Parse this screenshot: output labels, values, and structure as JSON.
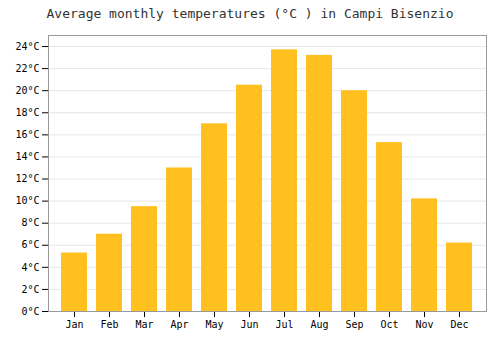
{
  "chart_data": {
    "type": "bar",
    "title": "Average monthly temperatures (°C ) in Campi Bisenzio",
    "categories": [
      "Jan",
      "Feb",
      "Mar",
      "Apr",
      "May",
      "Jun",
      "Jul",
      "Aug",
      "Sep",
      "Oct",
      "Nov",
      "Dec"
    ],
    "values": [
      5.3,
      7.0,
      9.5,
      13.0,
      17.0,
      20.5,
      23.7,
      23.2,
      20.0,
      15.3,
      10.2,
      6.2
    ],
    "color": "#FFC020",
    "ylim": [
      0,
      25
    ],
    "yticks": [
      {
        "value": 0,
        "label": "0°C"
      },
      {
        "value": 2,
        "label": "2°C"
      },
      {
        "value": 4,
        "label": "4°C"
      },
      {
        "value": 6,
        "label": "6°C"
      },
      {
        "value": 8,
        "label": "8°C"
      },
      {
        "value": 10,
        "label": "10°C"
      },
      {
        "value": 12,
        "label": "12°C"
      },
      {
        "value": 14,
        "label": "14°C"
      },
      {
        "value": 16,
        "label": "16°C"
      },
      {
        "value": 18,
        "label": "18°C"
      },
      {
        "value": 20,
        "label": "20°C"
      },
      {
        "value": 22,
        "label": "22°C"
      },
      {
        "value": 24,
        "label": "24°C"
      }
    ],
    "grid": true
  }
}
